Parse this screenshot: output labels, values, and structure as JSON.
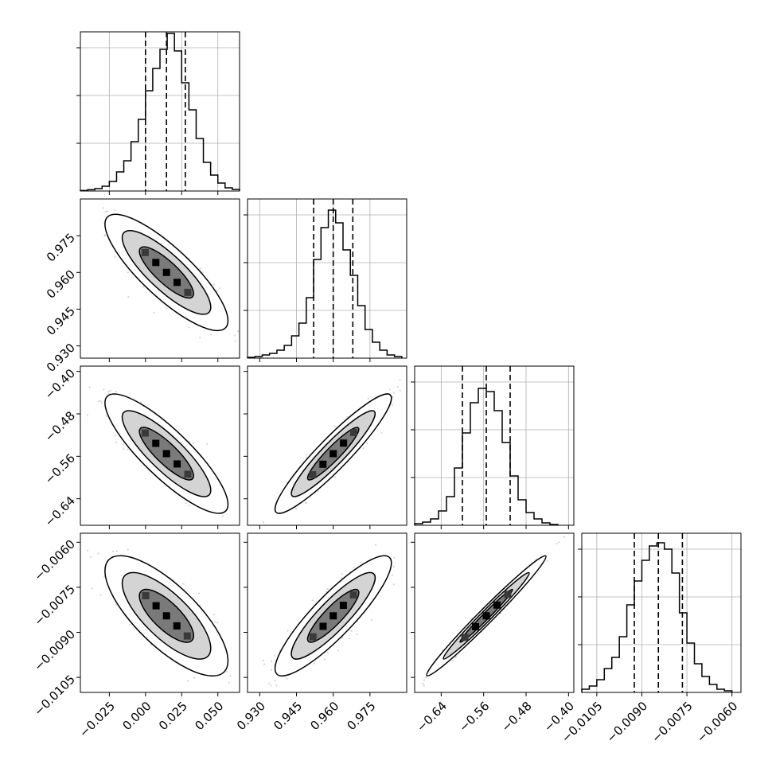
{
  "figure": {
    "type": "corner-plot",
    "grid": true,
    "colors": {
      "hist_line": "#000000",
      "quantile_line": "#000000",
      "grid": "#b0b0b0",
      "scatter": "#888888"
    }
  },
  "chart_data": [
    {
      "type": "histogram",
      "panel": "p1",
      "param_index": 0,
      "xlim": [
        -0.045,
        0.065
      ],
      "x_ticks": [
        -0.025,
        0.0,
        0.025,
        0.05
      ],
      "quantiles": [
        0.0,
        0.0145,
        0.0275
      ],
      "bins": [
        [
          -0.045,
          -0.04,
          0.003
        ],
        [
          -0.04,
          -0.035,
          0.008
        ],
        [
          -0.035,
          -0.03,
          0.015
        ],
        [
          -0.03,
          -0.025,
          0.03
        ],
        [
          -0.025,
          -0.02,
          0.06
        ],
        [
          -0.02,
          -0.015,
          0.12
        ],
        [
          -0.015,
          -0.01,
          0.19
        ],
        [
          -0.01,
          -0.005,
          0.31
        ],
        [
          -0.005,
          0.0,
          0.45
        ],
        [
          0.0,
          0.005,
          0.63
        ],
        [
          0.005,
          0.01,
          0.77
        ],
        [
          0.01,
          0.015,
          0.89
        ],
        [
          0.015,
          0.02,
          0.99
        ],
        [
          0.02,
          0.025,
          0.88
        ],
        [
          0.025,
          0.03,
          0.68
        ],
        [
          0.03,
          0.035,
          0.51
        ],
        [
          0.035,
          0.04,
          0.33
        ],
        [
          0.04,
          0.045,
          0.18
        ],
        [
          0.045,
          0.05,
          0.1
        ],
        [
          0.05,
          0.055,
          0.05
        ],
        [
          0.055,
          0.06,
          0.02
        ],
        [
          0.06,
          0.065,
          0.01
        ]
      ]
    },
    {
      "type": "histogram",
      "panel": "p2",
      "param_index": 1,
      "xlim": [
        0.925,
        0.99
      ],
      "x_ticks": [
        0.93,
        0.945,
        0.96,
        0.975
      ],
      "quantiles": [
        0.952,
        0.96,
        0.968
      ],
      "bins": [
        [
          0.925,
          0.928,
          0.005
        ],
        [
          0.928,
          0.931,
          0.01
        ],
        [
          0.931,
          0.934,
          0.02
        ],
        [
          0.934,
          0.937,
          0.03
        ],
        [
          0.937,
          0.94,
          0.05
        ],
        [
          0.94,
          0.943,
          0.08
        ],
        [
          0.943,
          0.946,
          0.14
        ],
        [
          0.946,
          0.949,
          0.22
        ],
        [
          0.949,
          0.952,
          0.38
        ],
        [
          0.952,
          0.955,
          0.62
        ],
        [
          0.955,
          0.958,
          0.82
        ],
        [
          0.958,
          0.961,
          0.93
        ],
        [
          0.961,
          0.964,
          0.85
        ],
        [
          0.964,
          0.967,
          0.68
        ],
        [
          0.967,
          0.97,
          0.52
        ],
        [
          0.97,
          0.973,
          0.33
        ],
        [
          0.973,
          0.976,
          0.18
        ],
        [
          0.976,
          0.979,
          0.1
        ],
        [
          0.979,
          0.982,
          0.05
        ],
        [
          0.982,
          0.985,
          0.02
        ],
        [
          0.985,
          0.988,
          0.01
        ]
      ]
    },
    {
      "type": "histogram",
      "panel": "p3",
      "param_index": 2,
      "xlim": [
        -0.69,
        -0.39
      ],
      "x_ticks": [
        -0.64,
        -0.56,
        -0.48,
        -0.4
      ],
      "quantiles": [
        -0.6,
        -0.555,
        -0.51
      ],
      "bins": [
        [
          -0.69,
          -0.675,
          0.01
        ],
        [
          -0.675,
          -0.66,
          0.02
        ],
        [
          -0.66,
          -0.645,
          0.04
        ],
        [
          -0.645,
          -0.63,
          0.09
        ],
        [
          -0.63,
          -0.615,
          0.18
        ],
        [
          -0.615,
          -0.6,
          0.36
        ],
        [
          -0.6,
          -0.585,
          0.58
        ],
        [
          -0.585,
          -0.57,
          0.77
        ],
        [
          -0.57,
          -0.555,
          0.86
        ],
        [
          -0.555,
          -0.54,
          0.84
        ],
        [
          -0.54,
          -0.525,
          0.72
        ],
        [
          -0.525,
          -0.51,
          0.52
        ],
        [
          -0.51,
          -0.495,
          0.31
        ],
        [
          -0.495,
          -0.48,
          0.16
        ],
        [
          -0.48,
          -0.465,
          0.08
        ],
        [
          -0.465,
          -0.45,
          0.04
        ],
        [
          -0.45,
          -0.435,
          0.015
        ],
        [
          -0.435,
          -0.42,
          0.005
        ]
      ]
    },
    {
      "type": "histogram",
      "panel": "p4",
      "param_index": 3,
      "xlim": [
        -0.011,
        -0.0057
      ],
      "x_ticks": [
        -0.0105,
        -0.009,
        -0.0075,
        -0.006
      ],
      "quantiles": [
        -0.00925,
        -0.00845,
        -0.00765
      ],
      "bins": [
        [
          -0.011,
          -0.01075,
          0.02
        ],
        [
          -0.01075,
          -0.0105,
          0.04
        ],
        [
          -0.0105,
          -0.01025,
          0.08
        ],
        [
          -0.01025,
          -0.01,
          0.15
        ],
        [
          -0.01,
          -0.00975,
          0.22
        ],
        [
          -0.00975,
          -0.0095,
          0.35
        ],
        [
          -0.0095,
          -0.00925,
          0.55
        ],
        [
          -0.00925,
          -0.009,
          0.7
        ],
        [
          -0.009,
          -0.00875,
          0.83
        ],
        [
          -0.00875,
          -0.0085,
          0.92
        ],
        [
          -0.0085,
          -0.00825,
          0.94
        ],
        [
          -0.00825,
          -0.008,
          0.9
        ],
        [
          -0.008,
          -0.00775,
          0.75
        ],
        [
          -0.00775,
          -0.0075,
          0.5
        ],
        [
          -0.0075,
          -0.00725,
          0.31
        ],
        [
          -0.00725,
          -0.007,
          0.18
        ],
        [
          -0.007,
          -0.00675,
          0.1
        ],
        [
          -0.00675,
          -0.0065,
          0.05
        ],
        [
          -0.0065,
          -0.00625,
          0.02
        ],
        [
          -0.00625,
          -0.006,
          0.01
        ]
      ]
    },
    {
      "type": "scatter-density",
      "panel": "p5",
      "x_param": 0,
      "y_param": 1,
      "xlim": [
        -0.045,
        0.065
      ],
      "ylim": [
        0.925,
        0.99
      ],
      "y_ticks": [
        0.93,
        0.945,
        0.96,
        0.975
      ],
      "mean": [
        0.0145,
        0.96
      ],
      "sd": [
        0.017,
        0.0095
      ],
      "rho": -0.83
    },
    {
      "type": "scatter-density",
      "panel": "p6",
      "x_param": 0,
      "y_param": 2,
      "xlim": [
        -0.045,
        0.065
      ],
      "ylim": [
        -0.69,
        -0.39
      ],
      "y_ticks": [
        -0.64,
        -0.56,
        -0.48,
        -0.4
      ],
      "mean": [
        0.0145,
        -0.555
      ],
      "sd": [
        0.017,
        0.045
      ],
      "rho": -0.85
    },
    {
      "type": "scatter-density",
      "panel": "p7",
      "x_param": 1,
      "y_param": 2,
      "xlim": [
        0.925,
        0.99
      ],
      "ylim": [
        -0.69,
        -0.39
      ],
      "mean": [
        0.96,
        -0.555
      ],
      "sd": [
        0.0095,
        0.045
      ],
      "rho": 0.93
    },
    {
      "type": "scatter-density",
      "panel": "p8",
      "x_param": 0,
      "y_param": 3,
      "xlim": [
        -0.045,
        0.065
      ],
      "ylim": [
        -0.011,
        -0.0057
      ],
      "y_ticks": [
        -0.0105,
        -0.009,
        -0.0075,
        -0.006
      ],
      "mean": [
        0.0145,
        -0.00845
      ],
      "sd": [
        0.017,
        0.0008
      ],
      "rho": -0.75
    },
    {
      "type": "scatter-density",
      "panel": "p9",
      "x_param": 1,
      "y_param": 3,
      "xlim": [
        0.925,
        0.99
      ],
      "ylim": [
        -0.011,
        -0.0057
      ],
      "mean": [
        0.96,
        -0.00845
      ],
      "sd": [
        0.0095,
        0.0008
      ],
      "rho": 0.88
    },
    {
      "type": "scatter-density",
      "panel": "p10",
      "x_param": 2,
      "y_param": 3,
      "xlim": [
        -0.69,
        -0.39
      ],
      "ylim": [
        -0.011,
        -0.0057
      ],
      "mean": [
        -0.555,
        -0.00845
      ],
      "sd": [
        0.045,
        0.0008
      ],
      "rho": 0.985
    }
  ]
}
